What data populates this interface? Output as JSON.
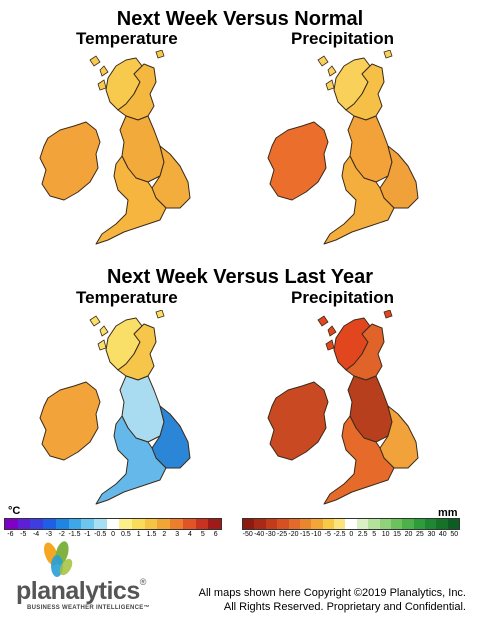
{
  "section1": {
    "title": "Next Week Versus Normal",
    "temperature_label": "Temperature",
    "precipitation_label": "Precipitation"
  },
  "section2": {
    "title": "Next Week Versus Last Year",
    "temperature_label": "Temperature",
    "precipitation_label": "Precipitation"
  },
  "maps": [
    {
      "id": "normal-temperature",
      "ireland": "#f2a33a",
      "northwest": "#f7c94d",
      "north": "#f4b840",
      "midlands": "#f2aa3a",
      "south": "#f5b53f",
      "east": "#f3ad3c"
    },
    {
      "id": "normal-precipitation",
      "ireland": "#ec6e2c",
      "northwest": "#f8d05a",
      "north": "#f6c046",
      "midlands": "#f3a23a",
      "south": "#f4ae3d",
      "east": "#f1a13a"
    },
    {
      "id": "lastyear-temperature",
      "ireland": "#f2a33a",
      "northwest": "#f9de67",
      "north": "#f6c64a",
      "midlands": "#a9dcf0",
      "south": "#65b9ea",
      "east": "#2c86d8"
    },
    {
      "id": "lastyear-precipitation",
      "ireland": "#c94a22",
      "northwest": "#e2461f",
      "north": "#e0642a",
      "midlands": "#b73f1d",
      "south": "#e66a2a",
      "east": "#f2a23a"
    }
  ],
  "temperature_scale": {
    "unit": "°C",
    "ticks": [
      "-6",
      "-5",
      "-4",
      "-3",
      "-2",
      "-1.5",
      "-1",
      "-0.5",
      "0",
      "0.5",
      "1",
      "1.5",
      "2",
      "3",
      "4",
      "5",
      "6"
    ],
    "colors": [
      "#7f00c6",
      "#5e20d6",
      "#3d3de0",
      "#1f5ee6",
      "#1e86e2",
      "#3ca8ea",
      "#6dc6f0",
      "#a6def3",
      "#ffffff",
      "#fbf08a",
      "#f9dc5a",
      "#f6c445",
      "#f2a537",
      "#ec7e2c",
      "#e05425",
      "#c9321f",
      "#a11a1a"
    ]
  },
  "precipitation_scale": {
    "unit": "mm",
    "ticks": [
      "-50",
      "-40",
      "-30",
      "-25",
      "-20",
      "-15",
      "-10",
      "-5",
      "-2.5",
      "0",
      "2.5",
      "5",
      "10",
      "15",
      "20",
      "25",
      "30",
      "40",
      "50"
    ],
    "colors": [
      "#8c1c10",
      "#a82a16",
      "#c23c1c",
      "#d65022",
      "#e36a28",
      "#ec862e",
      "#f3a637",
      "#f8c847",
      "#fbe47c",
      "#ffffff",
      "#d9f0c4",
      "#b5e29b",
      "#8fd27b",
      "#6cc35e",
      "#4cb148",
      "#2f9c3b",
      "#1f8733",
      "#147229",
      "#0d5c22"
    ]
  },
  "logo": {
    "name": "planalytics",
    "trademark": "®",
    "tagline": "BUSINESS WEATHER INTELLIGENCE™"
  },
  "copyright": {
    "line1": "All maps shown here Copyright ©2019 Planalytics, Inc.",
    "line2": "All Rights Reserved. Proprietary and Confidential."
  }
}
